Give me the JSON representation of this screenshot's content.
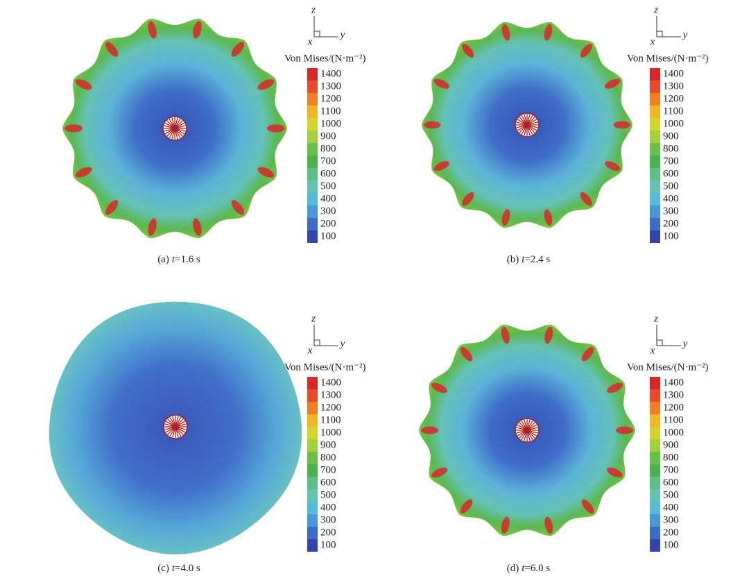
{
  "panels": [
    {
      "label": "(a)",
      "variable": "t",
      "time": "=1.6 s"
    },
    {
      "label": "(b)",
      "variable": "t",
      "time": "=2.4 s"
    },
    {
      "label": "(c)",
      "variable": "t",
      "time": "=4.0 s"
    },
    {
      "label": "(d)",
      "variable": "t",
      "time": "=6.0 s"
    }
  ],
  "colorbar": {
    "title": "Von Mises/(N·m⁻²)",
    "ticks": [
      1400,
      1300,
      1200,
      1100,
      1000,
      900,
      800,
      700,
      600,
      500,
      400,
      300,
      200,
      100
    ],
    "colors": [
      "#d7282a",
      "#e84a2a",
      "#ef7f25",
      "#f1b626",
      "#d2d52b",
      "#a3d03c",
      "#6cbf48",
      "#4eb14f",
      "#5cbf86",
      "#66c3b2",
      "#58badb",
      "#4a97d6",
      "#3d6cc6",
      "#3246ac"
    ]
  },
  "axes": {
    "z": "z",
    "x": "x",
    "y": "y"
  }
}
